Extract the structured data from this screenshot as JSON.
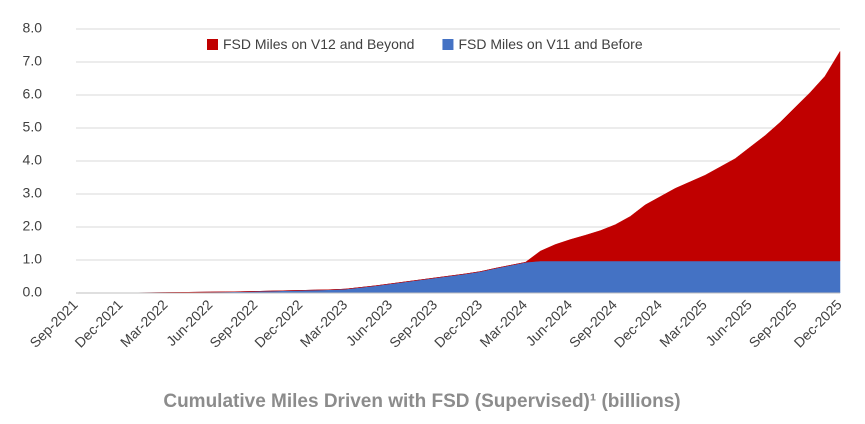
{
  "chart_data": {
    "type": "stacked_area",
    "title": "Cumulative Miles Driven with FSD (Supervised)¹ (billions)",
    "categories": [
      "Sep-2021",
      null,
      null,
      "Dec-2021",
      null,
      null,
      "Mar-2022",
      null,
      null,
      "Jun-2022",
      null,
      null,
      "Sep-2022",
      null,
      null,
      "Dec-2022",
      null,
      null,
      "Mar-2023",
      null,
      null,
      "Jun-2023",
      null,
      null,
      "Sep-2023",
      null,
      null,
      "Dec-2023",
      null,
      null,
      "Mar-2024",
      null,
      null,
      "Jun-2024",
      null,
      null,
      "Sep-2024",
      null,
      null,
      "Dec-2024",
      null,
      null,
      "Mar-2025",
      null,
      null,
      "Jun-2025",
      null,
      null,
      "Sep-2025",
      null,
      null,
      "Dec-2025"
    ],
    "series": [
      {
        "name": "FSD Miles on V11 and Before",
        "color": "#4472c4",
        "values": [
          0,
          0.001,
          0.002,
          0.005,
          0.007,
          0.01,
          0.015,
          0.02,
          0.025,
          0.03,
          0.035,
          0.04,
          0.05,
          0.06,
          0.07,
          0.08,
          0.09,
          0.1,
          0.12,
          0.17,
          0.22,
          0.28,
          0.34,
          0.4,
          0.46,
          0.52,
          0.58,
          0.65,
          0.75,
          0.84,
          0.93,
          0.97,
          0.97,
          0.97,
          0.97,
          0.97,
          0.97,
          0.97,
          0.97,
          0.97,
          0.97,
          0.97,
          0.97,
          0.97,
          0.97,
          0.97,
          0.97,
          0.97,
          0.97,
          0.97,
          0.97,
          0.97
        ]
      },
      {
        "name": "FSD Miles on V12 and Beyond",
        "color": "#c00000",
        "values": [
          0,
          0,
          0,
          0,
          0,
          0,
          0,
          0,
          0,
          0,
          0,
          0,
          0,
          0,
          0,
          0,
          0,
          0,
          0,
          0,
          0,
          0,
          0,
          0,
          0,
          0,
          0,
          0,
          0,
          0,
          0,
          0.3,
          0.5,
          0.65,
          0.78,
          0.92,
          1.1,
          1.35,
          1.7,
          1.95,
          2.2,
          2.4,
          2.6,
          2.85,
          3.1,
          3.45,
          3.8,
          4.2,
          4.65,
          5.1,
          5.6,
          6.35
        ]
      }
    ],
    "ylim": [
      0,
      8
    ],
    "yticks": [
      {
        "value": 0,
        "label": "0.0"
      },
      {
        "value": 1,
        "label": "1.0"
      },
      {
        "value": 2,
        "label": "2.0"
      },
      {
        "value": 3,
        "label": "3.0"
      },
      {
        "value": 4,
        "label": "4.0"
      },
      {
        "value": 5,
        "label": "5.0"
      },
      {
        "value": 6,
        "label": "6.0"
      },
      {
        "value": 7,
        "label": "7.0"
      },
      {
        "value": 8,
        "label": "8.0"
      }
    ],
    "grid": true,
    "legend": "top"
  }
}
